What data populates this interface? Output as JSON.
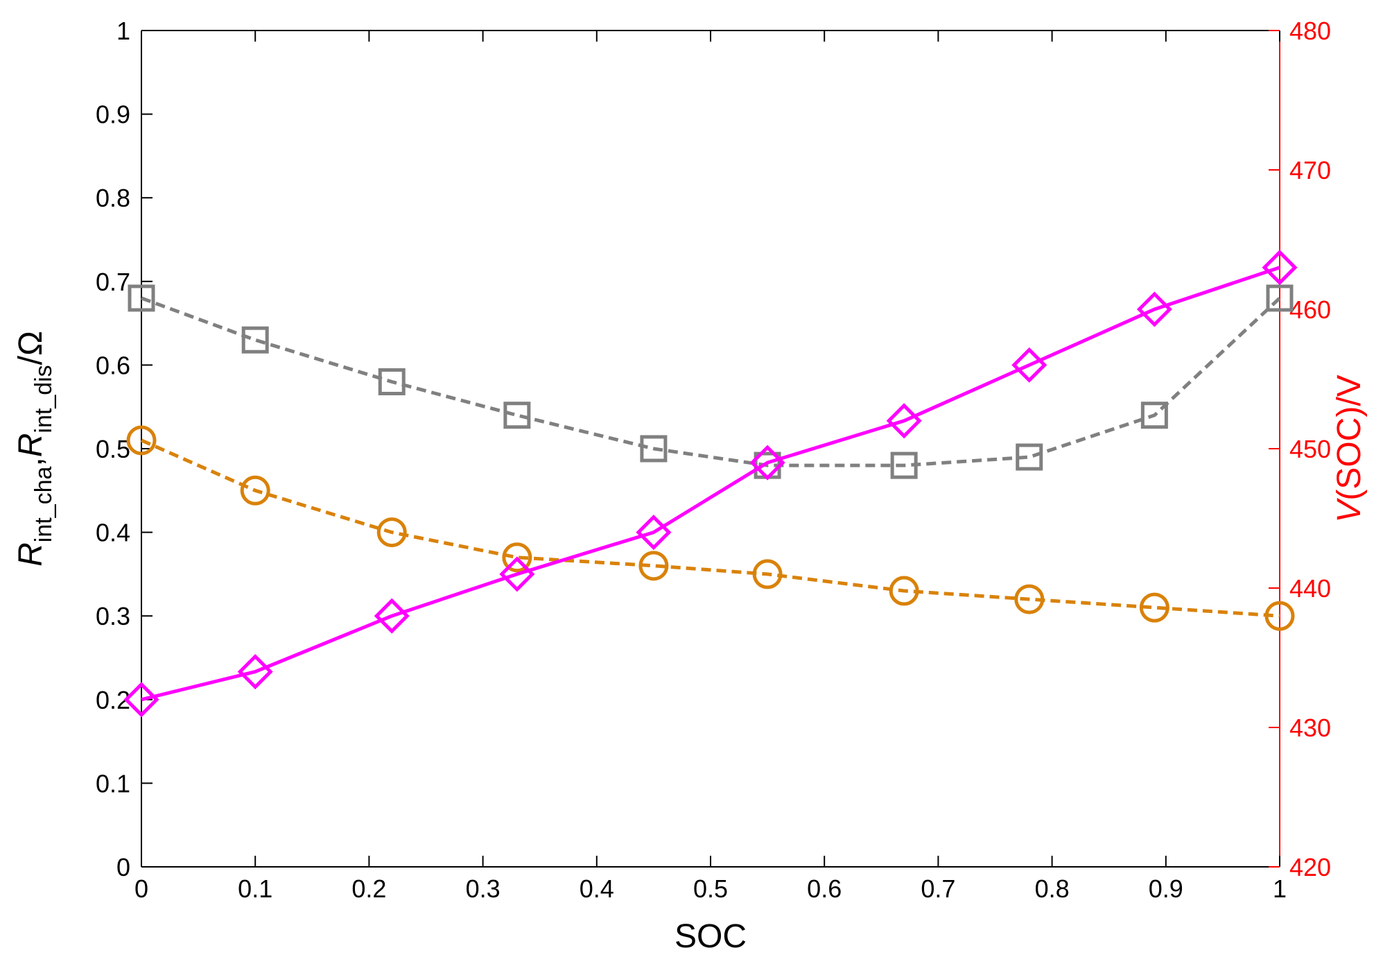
{
  "chart_data": {
    "type": "line",
    "xlabel": "SOC",
    "ylabel_left": {
      "base": "R",
      "sub1": "int_cha",
      "sep": ",",
      "sub2": "int_dis",
      "unit": "/Ω"
    },
    "ylabel_right": {
      "italic": "V",
      "rest": "(SOC)/V"
    },
    "xlim": [
      0,
      1
    ],
    "ylim_left": [
      0,
      1
    ],
    "ylim_right": [
      420,
      480
    ],
    "x_ticks": [
      "0",
      "0.1",
      "0.2",
      "0.3",
      "0.4",
      "0.5",
      "0.6",
      "0.7",
      "0.8",
      "0.9",
      "1"
    ],
    "y_left_ticks": [
      "0",
      "0.1",
      "0.2",
      "0.3",
      "0.4",
      "0.5",
      "0.6",
      "0.7",
      "0.8",
      "0.9",
      "1"
    ],
    "y_right_ticks": [
      "420",
      "430",
      "440",
      "450",
      "460",
      "470",
      "480"
    ],
    "grid": false,
    "legend": "none",
    "right_axis_color": "#ff0000",
    "series": [
      {
        "axis": "left",
        "marker": "square",
        "line_style": "dashed",
        "color": "#808080",
        "x": [
          0,
          0.1,
          0.22,
          0.33,
          0.45,
          0.55,
          0.67,
          0.78,
          0.89,
          1.0
        ],
        "values": [
          0.68,
          0.63,
          0.58,
          0.54,
          0.5,
          0.48,
          0.48,
          0.49,
          0.54,
          0.68
        ]
      },
      {
        "axis": "left",
        "marker": "circle",
        "line_style": "dashed",
        "color": "#d9820a",
        "x": [
          0,
          0.1,
          0.22,
          0.33,
          0.45,
          0.55,
          0.67,
          0.78,
          0.89,
          1.0
        ],
        "values": [
          0.51,
          0.45,
          0.4,
          0.37,
          0.36,
          0.35,
          0.33,
          0.32,
          0.31,
          0.3
        ]
      },
      {
        "axis": "right",
        "marker": "diamond",
        "line_style": "solid",
        "color": "#ff00ff",
        "x": [
          0,
          0.1,
          0.22,
          0.33,
          0.45,
          0.55,
          0.67,
          0.78,
          0.89,
          1.0
        ],
        "values": [
          432,
          434,
          438,
          441,
          444,
          449,
          452,
          456,
          460,
          463
        ]
      }
    ]
  }
}
